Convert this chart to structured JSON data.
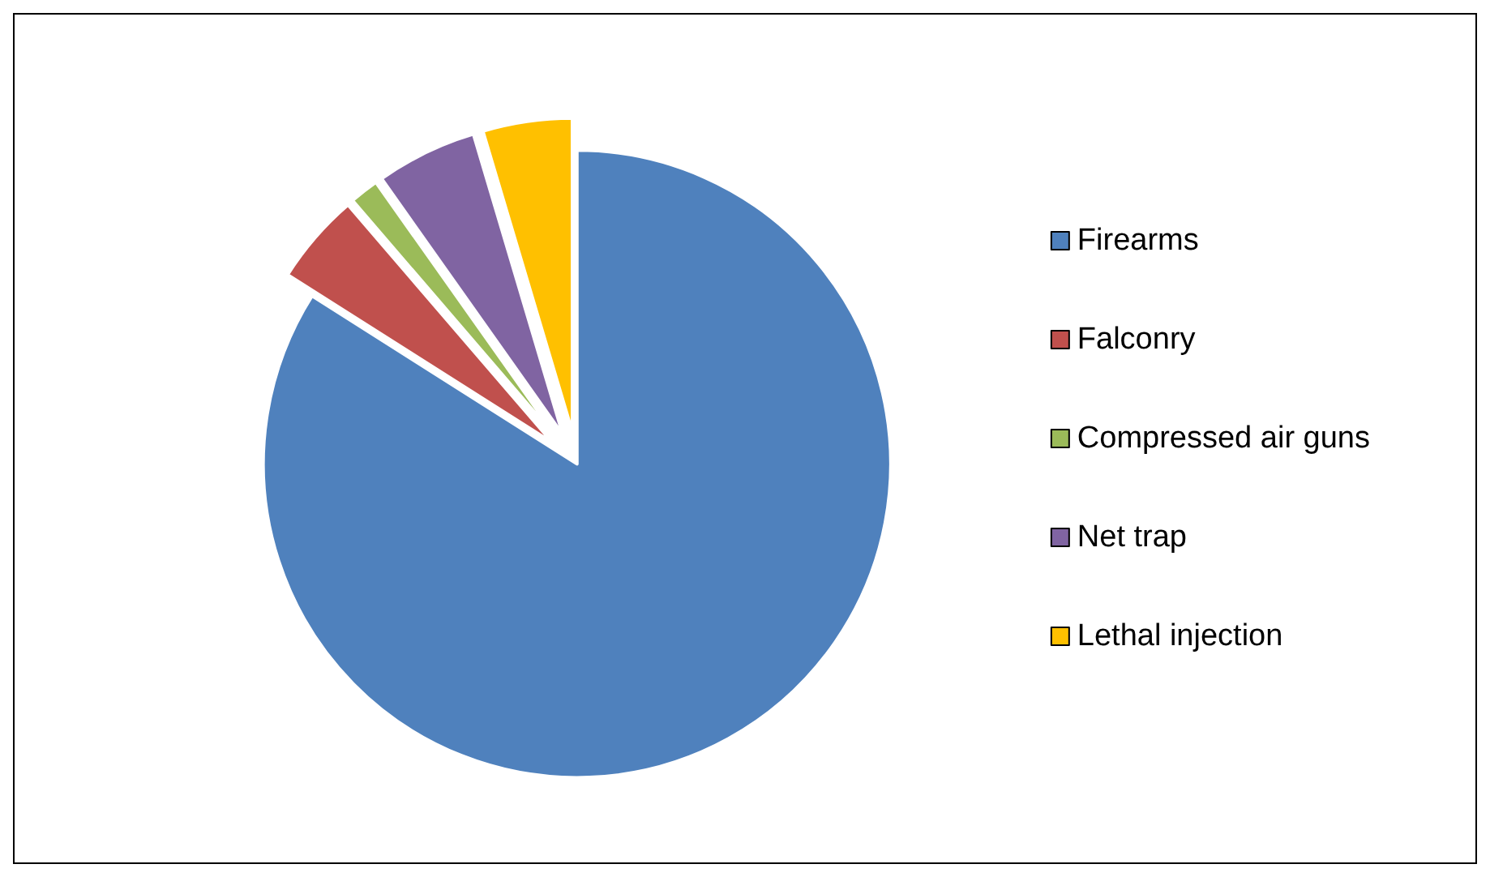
{
  "chart_data": {
    "type": "pie",
    "categories": [
      "Firearms",
      "Falconry",
      "Compressed air guns",
      "Net trap",
      "Lethal injection"
    ],
    "values": [
      84,
      4.7,
      1.5,
      5.2,
      4.6
    ],
    "colors": [
      "#4f81bd",
      "#c0504d",
      "#9bbb59",
      "#8064a2",
      "#ffc000"
    ],
    "legend": "right"
  }
}
